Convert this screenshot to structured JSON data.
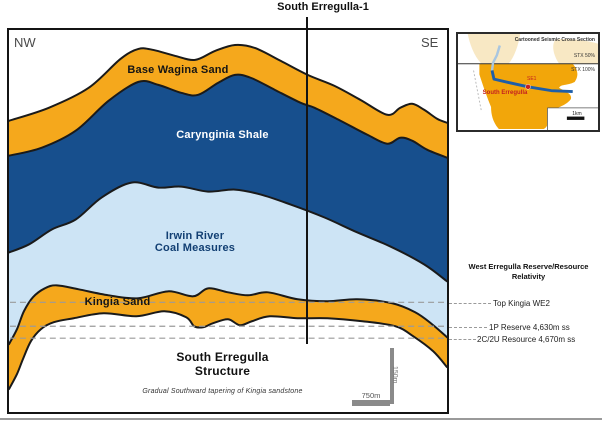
{
  "title": "South Erregulla-1",
  "section": {
    "nw_label": "NW",
    "se_label": "SE"
  },
  "layers": {
    "base_wagina": "Base Wagina Sand",
    "carynginia": "Carynginia Shale",
    "irwin_line1": "Irwin River",
    "irwin_line2": "Coal Measures",
    "kingia": "Kingia Sand"
  },
  "structure": {
    "line1": "South Erregulla",
    "line2": "Structure",
    "note": "Gradual Southward tapering of Kingia sandstone"
  },
  "scalebars": {
    "horizontal": "750m",
    "vertical": "150m"
  },
  "annotations": {
    "header_line1": "West Erregulla Reserve/Resource",
    "header_line2": "Relativity",
    "items": [
      {
        "label": "Top Kingia WE2"
      },
      {
        "label": "1P Reserve 4,630m ss"
      },
      {
        "label": "2C/2U Resource 4,670m ss"
      }
    ]
  },
  "inset": {
    "title": "Cartooned Seismic Cross Section",
    "permit_upper": "STX 50%",
    "permit_lower": "STX 100%",
    "well_label": "SE1",
    "area_label": "South Erregulla",
    "scale_label": "1km"
  },
  "colors": {
    "sand": "#F5A81C",
    "shale": "#174F8D",
    "coal_measures": "#CDE4F5",
    "outline": "#1A1A1A",
    "dash_gray": "#9A9A9A",
    "inset_gold": "#F2A60A",
    "inset_pale": "#F8E8C4",
    "seismic_line": "#1E5EA8",
    "highlight_red": "#C42020"
  }
}
